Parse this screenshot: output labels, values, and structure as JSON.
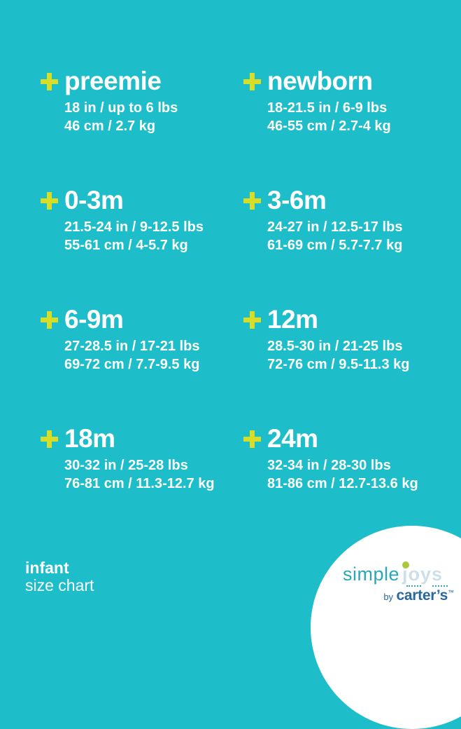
{
  "theme": {
    "bg": "#1dbdc9",
    "plus": "#d6de27",
    "text": "#ffffff",
    "logo-teal": "#2ba7b6",
    "logo-pale": "#cfdfe9",
    "logo-green": "#a9c938",
    "logo-navy": "#29679f",
    "circle": "#ffffff"
  },
  "sizes": [
    {
      "name": "preemie",
      "imperial": "18 in / up to 6 lbs",
      "metric": "46 cm / 2.7 kg"
    },
    {
      "name": "newborn",
      "imperial": "18-21.5 in / 6-9 lbs",
      "metric": "46-55 cm / 2.7-4 kg"
    },
    {
      "name": "0-3m",
      "imperial": "21.5-24 in / 9-12.5 lbs",
      "metric": "55-61 cm / 4-5.7 kg"
    },
    {
      "name": "3-6m",
      "imperial": "24-27 in / 12.5-17 lbs",
      "metric": "61-69 cm / 5.7-7.7 kg"
    },
    {
      "name": "6-9m",
      "imperial": "27-28.5 in / 17-21 lbs",
      "metric": "69-72 cm / 7.7-9.5 kg"
    },
    {
      "name": "12m",
      "imperial": "28.5-30 in / 21-25 lbs",
      "metric": "72-76 cm / 9.5-11.3 kg"
    },
    {
      "name": "18m",
      "imperial": "30-32 in / 25-28 lbs",
      "metric": "76-81 cm / 11.3-12.7 kg"
    },
    {
      "name": "24m",
      "imperial": "32-34 in / 28-30 lbs",
      "metric": "81-86 cm / 12.7-13.6 kg"
    }
  ],
  "footer": {
    "category": "infant",
    "label": "size chart"
  },
  "logo": {
    "simple": "simple",
    "joys": "joys",
    "by": "by",
    "brand": "carter’s",
    "tm": "™"
  }
}
